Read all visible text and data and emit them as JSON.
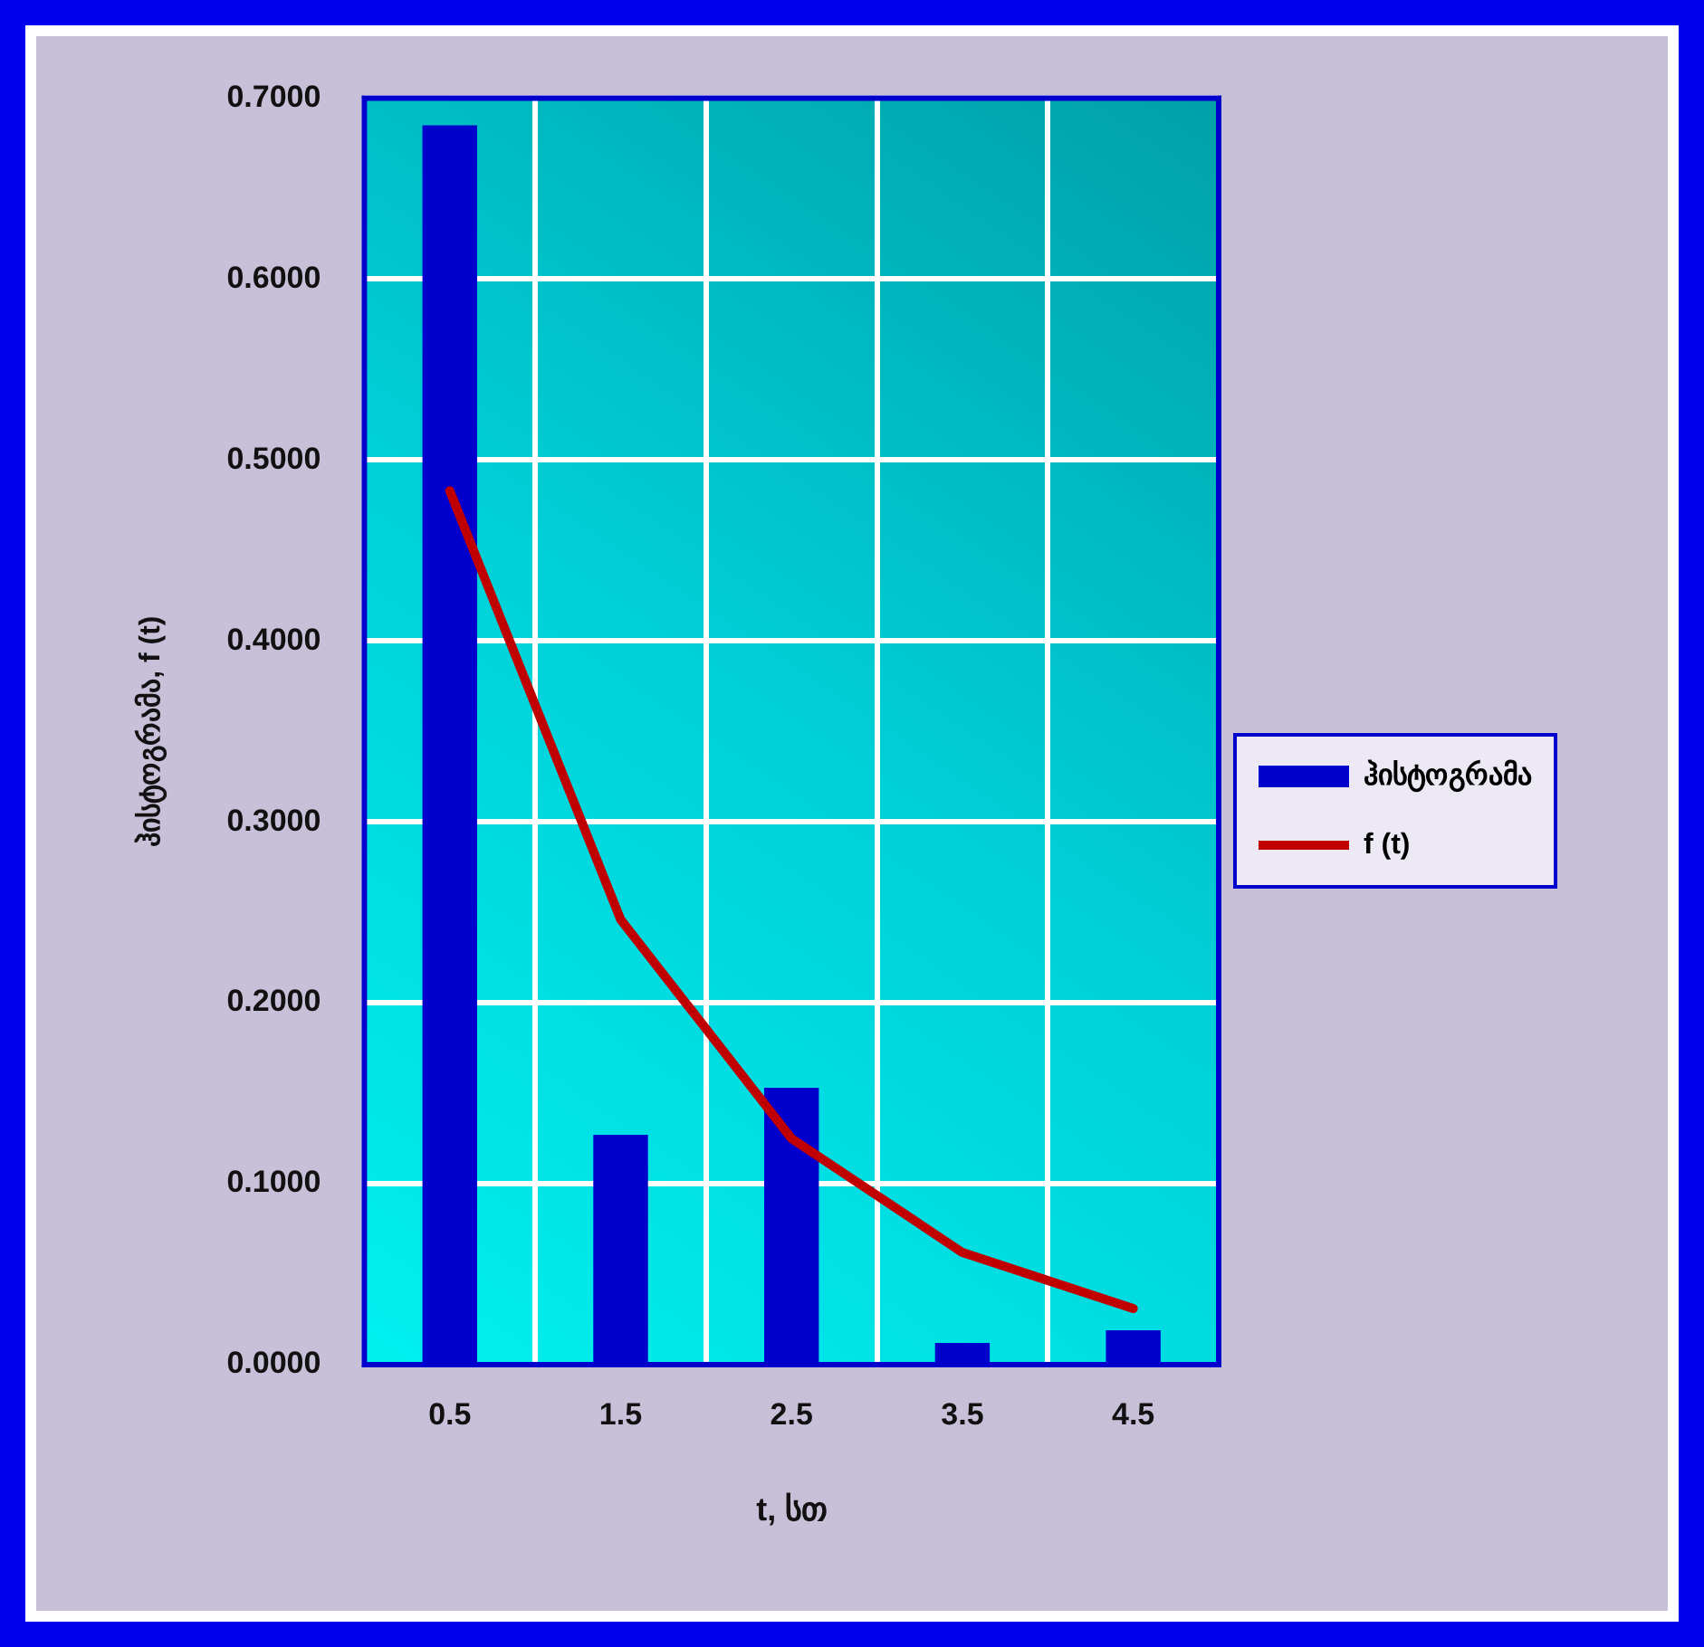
{
  "chart_data": {
    "type": "bar",
    "xlabel": "t, სთ",
    "ylabel": "ჰისტოგრამა, f (t)",
    "categories": [
      "0.5",
      "1.5",
      "2.5",
      "3.5",
      "4.5"
    ],
    "series": [
      {
        "name": "ჰისტოგრამა",
        "color": "#0000cc",
        "values": [
          0.685,
          0.127,
          0.153,
          0.012,
          0.019
        ]
      },
      {
        "name": "f (t)",
        "type": "line",
        "color": "#c00000",
        "values": [
          0.483,
          0.246,
          0.125,
          0.062,
          0.031
        ],
        "marker": "none",
        "line_style": "solid"
      }
    ],
    "ylim": [
      0,
      0.7
    ],
    "yticks": [
      {
        "value": 0,
        "label": "0.0000"
      },
      {
        "value": 0.1,
        "label": "0.1000"
      },
      {
        "value": 0.2,
        "label": "0.2000"
      },
      {
        "value": 0.3,
        "label": "0.3000"
      },
      {
        "value": 0.4,
        "label": "0.4000"
      },
      {
        "value": 0.5,
        "label": "0.5000"
      },
      {
        "value": 0.6,
        "label": "0.6000"
      },
      {
        "value": 0.7,
        "label": "0.7000"
      }
    ],
    "grid": true,
    "legend": "right"
  }
}
